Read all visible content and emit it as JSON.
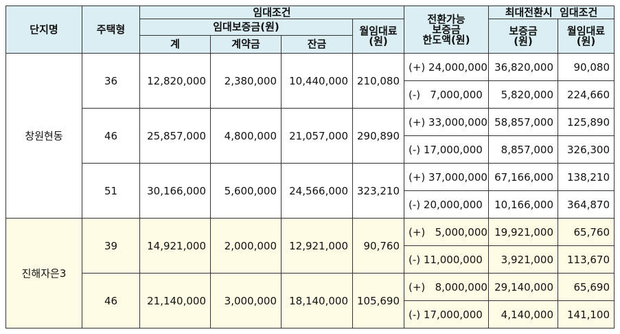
{
  "header": {
    "complex": "단지명",
    "unit_type": "주택형",
    "rental_conditions": "임대조건",
    "deposit": "임대보증금(원)",
    "total": "계",
    "contract": "계약금",
    "balance": "잔금",
    "monthly_rent": "월임대료\n(원)",
    "convertible": "전환가능\n보증금\n한도액(원)",
    "max_conversion": "최대전환시  임대조건",
    "max_deposit": "보증금\n(원)",
    "max_rent": "월임대료\n(원)"
  },
  "complexes": [
    {
      "name": "창원현동",
      "units": [
        {
          "type": "36",
          "total": "12,820,000",
          "contract": "2,380,000",
          "balance": "10,440,000",
          "rent": "210,080",
          "conversions": [
            {
              "limit": "(+) 24,000,000",
              "deposit": "36,820,000",
              "rent": "90,080"
            },
            {
              "limit": "(-)   7,000,000",
              "deposit": "5,820,000",
              "rent": "224,660"
            }
          ]
        },
        {
          "type": "46",
          "total": "25,857,000",
          "contract": "4,800,000",
          "balance": "21,057,000",
          "rent": "290,890",
          "conversions": [
            {
              "limit": "(+) 33,000,000",
              "deposit": "58,857,000",
              "rent": "125,890"
            },
            {
              "limit": "(-) 17,000,000",
              "deposit": "8,857,000",
              "rent": "326,300"
            }
          ]
        },
        {
          "type": "51",
          "total": "30,166,000",
          "contract": "5,600,000",
          "balance": "24,566,000",
          "rent": "323,210",
          "conversions": [
            {
              "limit": "(+) 37,000,000",
              "deposit": "67,166,000",
              "rent": "138,210"
            },
            {
              "limit": "(-) 20,000,000",
              "deposit": "10,166,000",
              "rent": "364,870"
            }
          ]
        }
      ]
    },
    {
      "name": "진해자은3",
      "units": [
        {
          "type": "39",
          "total": "14,921,000",
          "contract": "2,000,000",
          "balance": "12,921,000",
          "rent": "90,760",
          "conversions": [
            {
              "limit": "(+)   5,000,000",
              "deposit": "19,921,000",
              "rent": "65,760"
            },
            {
              "limit": "(-) 11,000,000",
              "deposit": "3,921,000",
              "rent": "113,670"
            }
          ]
        },
        {
          "type": "46",
          "total": "21,140,000",
          "contract": "3,000,000",
          "balance": "18,140,000",
          "rent": "105,690",
          "conversions": [
            {
              "limit": "(+)   8,000,000",
              "deposit": "29,140,000",
              "rent": "65,690"
            },
            {
              "limit": "(-) 17,000,000",
              "deposit": "4,140,000",
              "rent": "141,100"
            }
          ]
        }
      ]
    }
  ]
}
